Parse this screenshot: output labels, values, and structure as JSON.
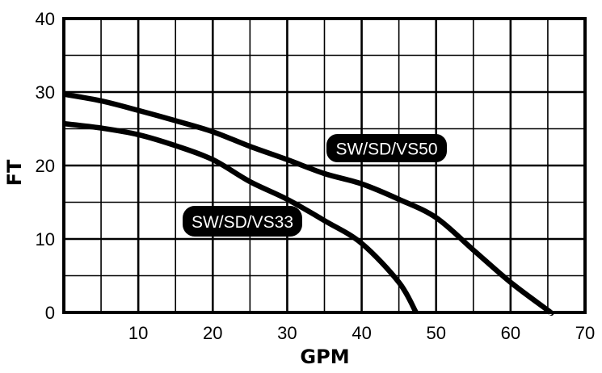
{
  "chart_data": {
    "type": "line",
    "title": "",
    "xlabel": "GPM",
    "ylabel": "FT",
    "xlim": [
      0,
      70
    ],
    "ylim": [
      0,
      40
    ],
    "x_ticks": [
      10,
      20,
      30,
      40,
      50,
      60,
      70
    ],
    "y_ticks": [
      0,
      10,
      20,
      30,
      40
    ],
    "grid": {
      "on": true,
      "major_step_x": 10,
      "minor_step_x": 5,
      "major_step_y": 10,
      "minor_step_y": 5
    },
    "legend": "inline labels",
    "series": [
      {
        "name": "SW/SD/VS50",
        "x": [
          0,
          5,
          10,
          15,
          20,
          25,
          30,
          35,
          40,
          45,
          50,
          55,
          60,
          65,
          65.3
        ],
        "y": [
          29.7,
          28.8,
          27.5,
          26.1,
          24.6,
          22.6,
          20.8,
          18.9,
          17.5,
          15.4,
          12.9,
          8.5,
          4.1,
          0.3,
          0
        ],
        "label_pos": {
          "x": 404,
          "y": 166,
          "w": 149,
          "h": 35
        }
      },
      {
        "name": "SW/SD/VS33",
        "x": [
          0,
          5,
          10,
          15,
          20,
          25,
          30,
          35,
          40,
          45,
          47.3
        ],
        "y": [
          25.7,
          25.1,
          24.2,
          22.7,
          20.8,
          17.8,
          15.4,
          12.5,
          9.4,
          4.1,
          0
        ],
        "label_pos": {
          "x": 226,
          "y": 255,
          "w": 148,
          "h": 38
        }
      }
    ]
  },
  "colors": {
    "line": "#000000",
    "grid": "#000000",
    "label_bg": "#000000",
    "label_text": "#ffffff",
    "background": "#ffffff"
  }
}
